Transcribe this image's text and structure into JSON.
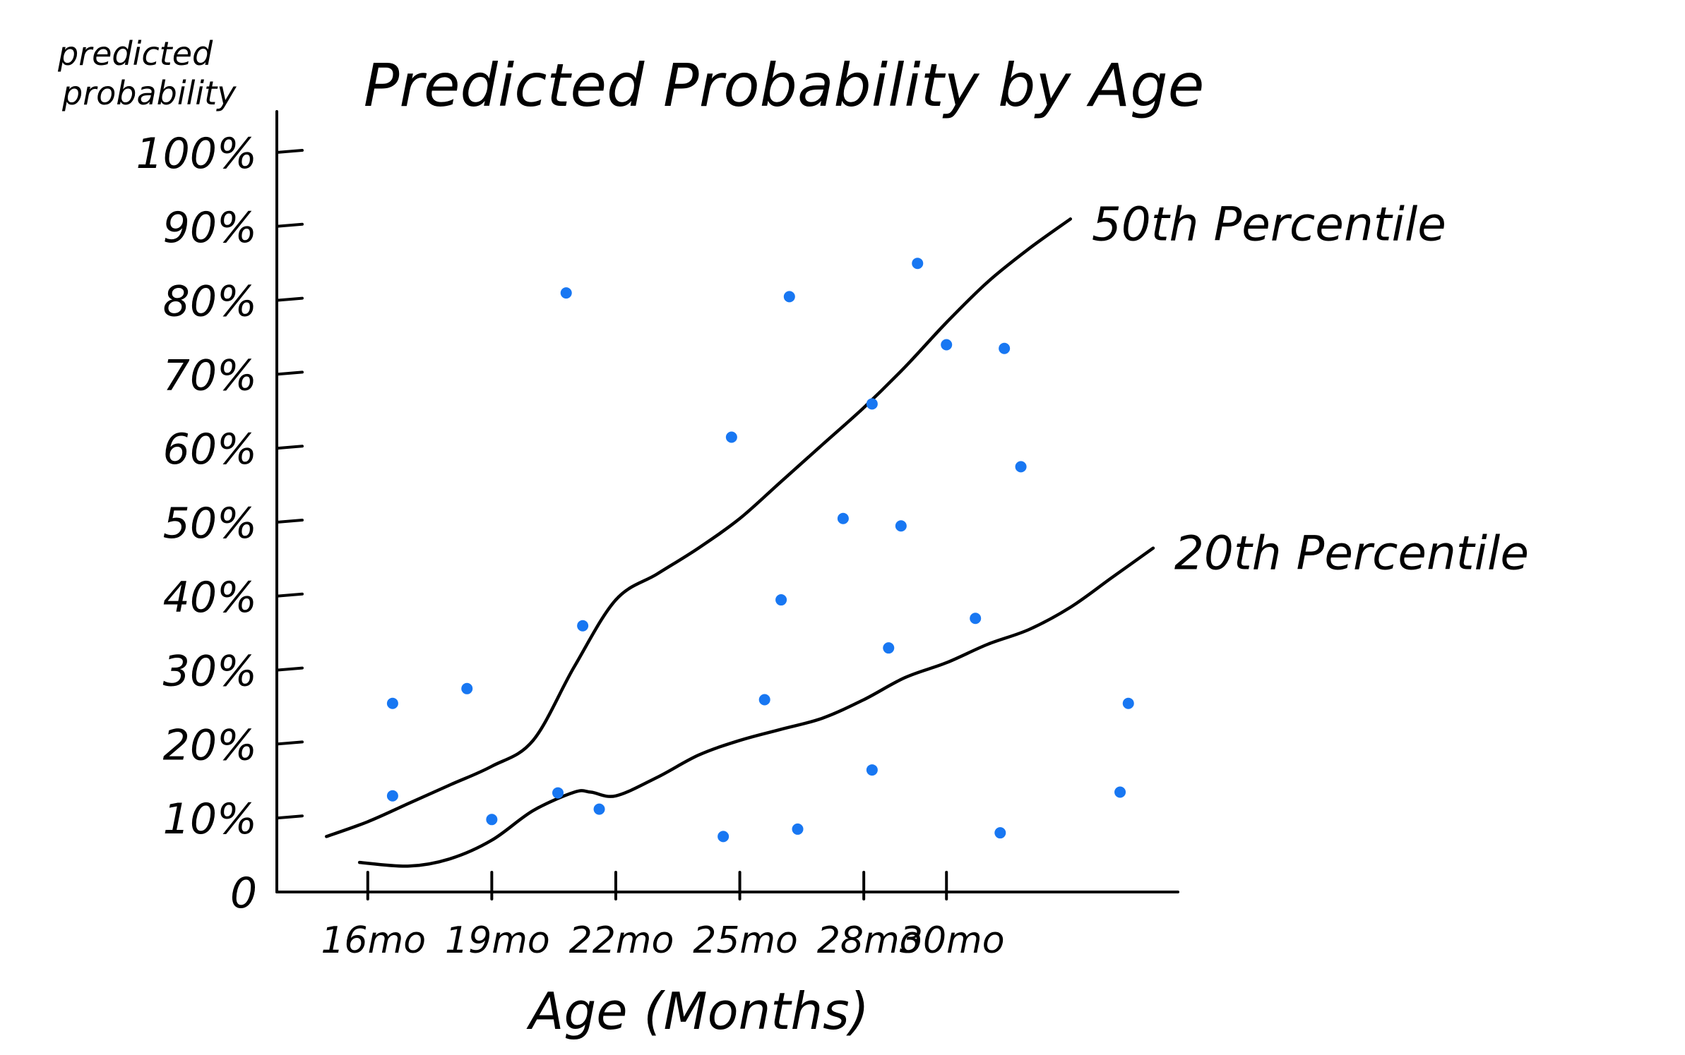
{
  "chart_data": {
    "type": "scatter",
    "title": "Predicted Probability by Age",
    "xlabel": "Age (Months)",
    "ylabel": "predicted probability",
    "x_ticks": [
      {
        "value": 16,
        "label": "16mo"
      },
      {
        "value": 19,
        "label": "19mo"
      },
      {
        "value": 22,
        "label": "22mo"
      },
      {
        "value": 25,
        "label": "25mo"
      },
      {
        "value": 28,
        "label": "28mo"
      },
      {
        "value": 30,
        "label": "30mo"
      }
    ],
    "y_ticks": [
      {
        "value": 0,
        "label": "0"
      },
      {
        "value": 10,
        "label": "10%"
      },
      {
        "value": 20,
        "label": "20%"
      },
      {
        "value": 30,
        "label": "30%"
      },
      {
        "value": 40,
        "label": "40%"
      },
      {
        "value": 50,
        "label": "50%"
      },
      {
        "value": 60,
        "label": "60%"
      },
      {
        "value": 70,
        "label": "70%"
      },
      {
        "value": 80,
        "label": "80%"
      },
      {
        "value": 90,
        "label": "90%"
      },
      {
        "value": 100,
        "label": "100%"
      }
    ],
    "xlim": [
      13.8,
      35.6
    ],
    "ylim": [
      0,
      105
    ],
    "grid": false,
    "colors": {
      "points": "#1877f2",
      "lines": "#000000"
    },
    "points": [
      {
        "x": 16.6,
        "y": 25.5
      },
      {
        "x": 16.6,
        "y": 13.0
      },
      {
        "x": 18.4,
        "y": 27.5
      },
      {
        "x": 19.0,
        "y": 9.8
      },
      {
        "x": 20.6,
        "y": 13.4
      },
      {
        "x": 20.8,
        "y": 81.0
      },
      {
        "x": 21.2,
        "y": 36.0
      },
      {
        "x": 21.6,
        "y": 11.2
      },
      {
        "x": 24.6,
        "y": 7.5
      },
      {
        "x": 24.8,
        "y": 61.5
      },
      {
        "x": 25.6,
        "y": 26.0
      },
      {
        "x": 26.0,
        "y": 39.5
      },
      {
        "x": 26.2,
        "y": 80.5
      },
      {
        "x": 26.4,
        "y": 8.5
      },
      {
        "x": 27.5,
        "y": 50.5
      },
      {
        "x": 28.2,
        "y": 66.0
      },
      {
        "x": 28.2,
        "y": 16.5
      },
      {
        "x": 28.6,
        "y": 33.0
      },
      {
        "x": 28.9,
        "y": 49.5
      },
      {
        "x": 29.3,
        "y": 85.0
      },
      {
        "x": 30.0,
        "y": 74.0
      },
      {
        "x": 30.7,
        "y": 37.0
      },
      {
        "x": 31.4,
        "y": 73.5
      },
      {
        "x": 31.3,
        "y": 8.0
      },
      {
        "x": 31.8,
        "y": 57.5
      },
      {
        "x": 34.4,
        "y": 25.5
      },
      {
        "x": 34.2,
        "y": 13.5
      }
    ],
    "series": [
      {
        "name": "50th Percentile",
        "x": [
          15.0,
          16.0,
          17.0,
          18.0,
          19.0,
          20.0,
          21.0,
          22.0,
          23.0,
          24.0,
          25.0,
          26.0,
          27.0,
          28.0,
          29.0,
          30.0,
          31.0,
          32.0,
          33.0
        ],
        "y": [
          7.5,
          9.5,
          12.0,
          14.5,
          17.0,
          20.5,
          30.5,
          39.5,
          43.0,
          46.5,
          50.5,
          55.5,
          60.5,
          65.5,
          71.0,
          77.0,
          82.5,
          87.0,
          91.0
        ]
      },
      {
        "name": "20th Percentile",
        "x": [
          15.8,
          17.0,
          18.0,
          19.0,
          20.0,
          21.0,
          21.4,
          22.0,
          23.0,
          24.0,
          25.0,
          26.0,
          27.0,
          28.0,
          29.0,
          30.0,
          31.0,
          32.0,
          33.0,
          34.0,
          35.0
        ],
        "y": [
          4.0,
          3.5,
          4.5,
          7.0,
          11.0,
          13.5,
          13.5,
          13.0,
          15.5,
          18.5,
          20.5,
          22.0,
          23.5,
          26.0,
          29.0,
          31.0,
          33.5,
          35.5,
          38.5,
          42.5,
          46.5
        ]
      }
    ]
  }
}
